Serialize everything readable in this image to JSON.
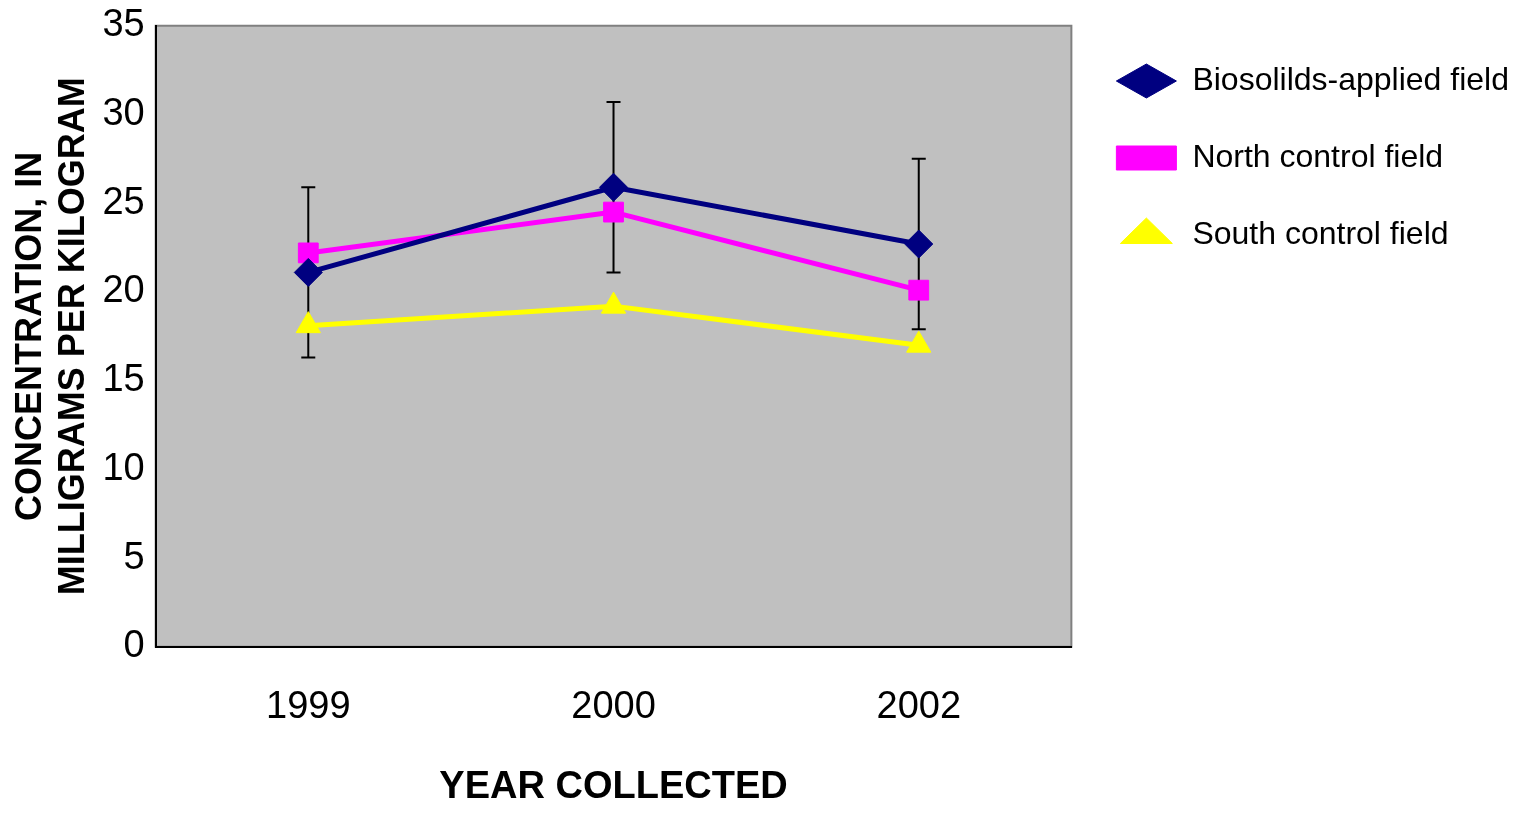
{
  "chart_data": {
    "type": "line",
    "xlabel": "YEAR COLLECTED",
    "ylabel": "CONCENTRATION, IN MILLIGRAMS PER KILOGRAM",
    "categories": [
      "1999",
      "2000",
      "2002"
    ],
    "ylim": [
      0,
      35
    ],
    "yticks": [
      0,
      5,
      10,
      15,
      20,
      25,
      30,
      35
    ],
    "grid": false,
    "legend": "right",
    "line_style": "solid",
    "series": [
      {
        "name": "Biosolilds-applied field",
        "color": "#000080",
        "marker": "diamond",
        "values": [
          21.1,
          25.9,
          22.7
        ],
        "errors": [
          4.8,
          4.8,
          4.8
        ]
      },
      {
        "name": "North control field",
        "color": "#ff00ff",
        "marker": "square",
        "values": [
          22.2,
          24.5,
          20.1
        ]
      },
      {
        "name": "South control field",
        "color": "#ffff00",
        "marker": "triangle",
        "values": [
          18.1,
          19.2,
          17.0
        ]
      }
    ]
  }
}
